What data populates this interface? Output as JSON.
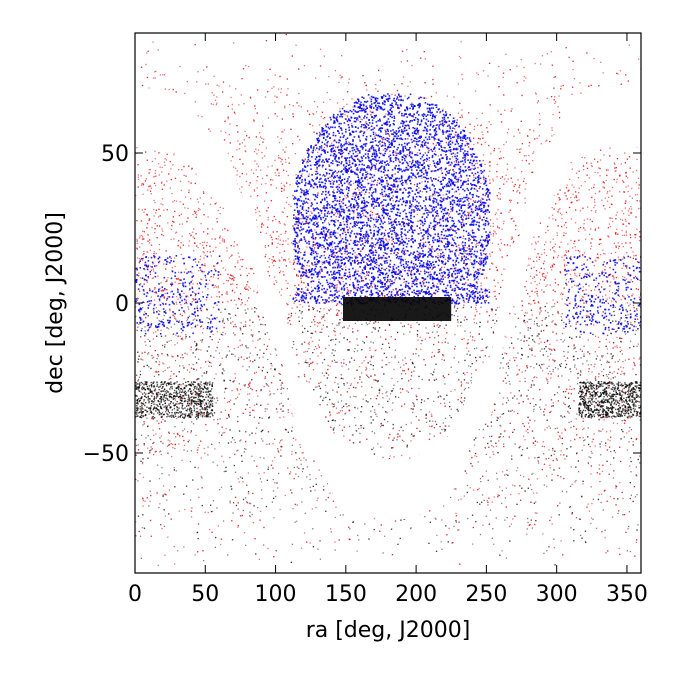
{
  "chart_data": {
    "type": "scatter",
    "xlabel": "ra [deg, J2000]",
    "ylabel": "dec [deg, J2000]",
    "xlim": [
      0,
      360
    ],
    "ylim": [
      -90,
      90
    ],
    "xticks": [
      0,
      50,
      100,
      150,
      200,
      250,
      300,
      350
    ],
    "yticks": [
      -50,
      0,
      50
    ],
    "xtick_labels": [
      "0",
      "50",
      "100",
      "150",
      "200",
      "250",
      "300",
      "350"
    ],
    "ytick_labels": [
      "−50",
      "0",
      "50"
    ],
    "grid": false,
    "legend": "none",
    "colors": {
      "north_sample": "#dd0000",
      "south_sample": "#000000",
      "footprint": "#0000ee",
      "galactic_mask": "#ffffff"
    },
    "regions": {
      "footprint_north_cap": {
        "ra": [
          112,
          252
        ],
        "dec": [
          0,
          70
        ]
      },
      "footprint_dark_strip": {
        "ra": [
          148,
          225
        ],
        "dec": [
          -6,
          2
        ]
      },
      "footprint_stripes": [
        {
          "ra": [
            0,
            60
          ],
          "dec": [
            -10,
            16
          ]
        },
        {
          "ra": [
            305,
            360
          ],
          "dec": [
            -10,
            16
          ]
        }
      ],
      "dense_black_bands": [
        {
          "ra": [
            0,
            55
          ],
          "dec": [
            -38,
            -26
          ]
        },
        {
          "ra": [
            315,
            360
          ],
          "dec": [
            -38,
            -26
          ]
        }
      ],
      "galactic_plane_mask": {
        "center_dec_by_ra": {
          "0": 62,
          "30": 60,
          "60": 44,
          "80": 24,
          "100": -5,
          "120": -38,
          "150": -58,
          "180": -62,
          "195": -62,
          "220": -55,
          "250": -30,
          "270": 10,
          "290": 40,
          "310": 57,
          "330": 62,
          "360": 62
        },
        "half_width_deg": 10
      }
    }
  }
}
